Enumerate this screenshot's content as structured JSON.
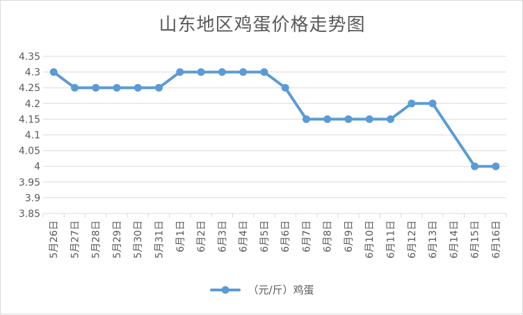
{
  "chart_data": {
    "type": "line",
    "title": "山东地区鸡蛋价格走势图",
    "categories": [
      "5月26日",
      "5月27日",
      "5月28日",
      "5月29日",
      "5月30日",
      "5月31日",
      "6月1日",
      "6月2日",
      "6月3日",
      "6月4日",
      "6月5日",
      "6月6日",
      "6月7日",
      "6月8日",
      "6月9日",
      "6月10日",
      "6月11日",
      "6月12日",
      "6月13日",
      "6月14日",
      "6月15日",
      "6月16日"
    ],
    "series": [
      {
        "name": "（元/斤）鸡蛋",
        "values": [
          4.3,
          4.25,
          4.25,
          4.25,
          4.25,
          4.25,
          4.3,
          4.3,
          4.3,
          4.3,
          4.3,
          4.25,
          4.15,
          4.15,
          4.15,
          4.15,
          4.15,
          4.2,
          4.2,
          null,
          4.0,
          4.0
        ],
        "color": "#5b9bd5"
      }
    ],
    "ylim": [
      3.85,
      4.35
    ],
    "yticks": [
      "4.35",
      "4.3",
      "4.25",
      "4.2",
      "4.15",
      "4.1",
      "4.05",
      "4",
      "3.95",
      "3.9",
      "3.85"
    ],
    "grid": true,
    "legend_position": "bottom",
    "grid_color": "#d9d9d9",
    "text_color": "#595959"
  }
}
